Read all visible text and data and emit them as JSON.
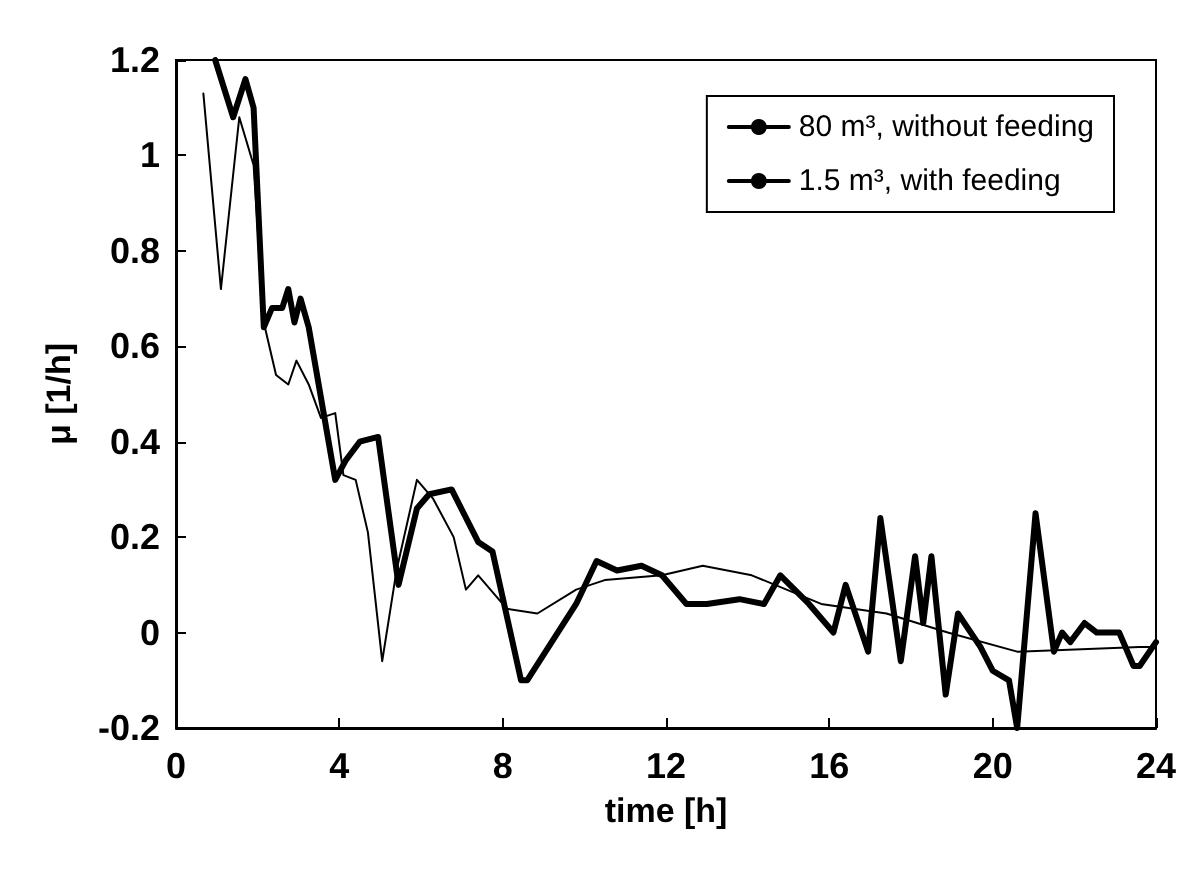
{
  "chart_data": {
    "type": "line",
    "xlabel": "time [h]",
    "ylabel": "μ [1/h]",
    "xlim": [
      0,
      24
    ],
    "xticks": [
      0,
      4,
      8,
      12,
      16,
      20,
      24
    ],
    "ylim": [
      -0.2,
      1.2
    ],
    "yticks": [
      -0.2,
      0,
      0.2,
      0.4,
      0.6,
      0.8,
      1,
      1.2
    ],
    "grid": false,
    "legend": "top right",
    "marker": "none",
    "line_style": "solid",
    "series": [
      {
        "name": "80 m³, without feeding",
        "color": "#000000",
        "x": [
          0.67,
          1.1,
          1.55,
          1.9,
          2.15,
          2.45,
          2.75,
          2.95,
          3.25,
          3.55,
          3.9,
          4.1,
          4.4,
          4.7,
          5.05,
          5.4,
          5.9,
          6.3,
          6.8,
          7.1,
          7.4,
          8.1,
          8.85,
          9.8,
          10.5,
          11.9,
          12.9,
          14.1,
          15.8,
          17.4,
          18.9,
          20.6,
          23.6,
          24
        ],
        "values": [
          1.13,
          0.72,
          1.08,
          0.98,
          0.65,
          0.54,
          0.52,
          0.57,
          0.52,
          0.45,
          0.46,
          0.33,
          0.32,
          0.21,
          -0.06,
          0.13,
          0.32,
          0.28,
          0.2,
          0.09,
          0.12,
          0.05,
          0.04,
          0.09,
          0.11,
          0.12,
          0.14,
          0.12,
          0.06,
          0.04,
          0,
          -0.04,
          -0.03,
          -0.03
        ]
      },
      {
        "name": "1.5 m³, with feeding",
        "color": "#000000",
        "x": [
          0.96,
          1.4,
          1.7,
          1.9,
          2.15,
          2.35,
          2.6,
          2.75,
          2.9,
          3.05,
          3.25,
          3.9,
          4.15,
          4.5,
          4.95,
          5.45,
          5.9,
          6.2,
          6.75,
          7.4,
          7.75,
          8.45,
          8.6,
          9.8,
          10.3,
          10.8,
          11.4,
          11.9,
          12.5,
          13,
          13.8,
          14.4,
          14.8,
          15.5,
          16.1,
          16.4,
          16.95,
          17.25,
          17.75,
          18.1,
          18.3,
          18.5,
          18.85,
          19.15,
          19.7,
          20,
          20.4,
          20.6,
          21.05,
          21.5,
          21.7,
          21.9,
          22.25,
          22.55,
          23.1,
          23.45,
          23.6,
          24
        ],
        "values": [
          1.2,
          1.08,
          1.16,
          1.1,
          0.64,
          0.68,
          0.68,
          0.72,
          0.65,
          0.7,
          0.64,
          0.32,
          0.36,
          0.4,
          0.41,
          0.1,
          0.26,
          0.29,
          0.3,
          0.19,
          0.17,
          -0.1,
          -0.1,
          0.06,
          0.15,
          0.13,
          0.14,
          0.12,
          0.06,
          0.06,
          0.07,
          0.06,
          0.12,
          0.06,
          0,
          0.1,
          -0.04,
          0.24,
          -0.06,
          0.16,
          0.02,
          0.16,
          -0.13,
          0.04,
          -0.03,
          -0.08,
          -0.1,
          -0.2,
          0.25,
          -0.04,
          0,
          -0.02,
          0.02,
          0,
          0,
          -0.07,
          -0.07,
          -0.02
        ]
      }
    ]
  }
}
